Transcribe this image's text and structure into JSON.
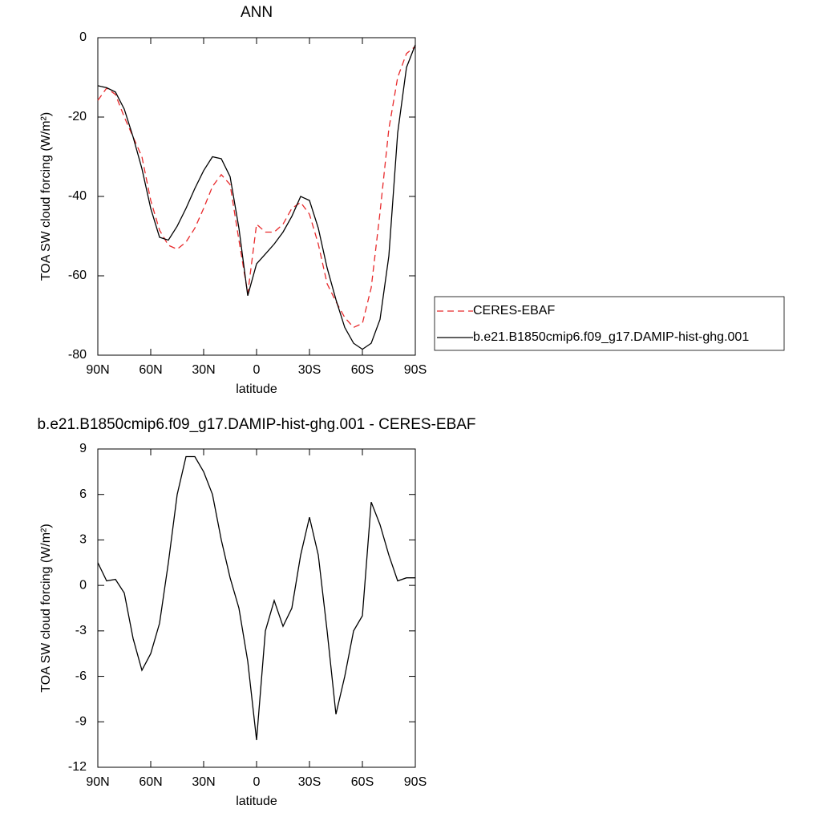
{
  "chart_data": [
    {
      "type": "line",
      "title": "ANN",
      "x_label": "latitude",
      "y_label": "TOA SW cloud forcing (W/m²)",
      "x": [
        90,
        85,
        80,
        75,
        70,
        65,
        60,
        55,
        50,
        45,
        40,
        35,
        30,
        25,
        20,
        15,
        10,
        5,
        0,
        -5,
        -10,
        -15,
        -20,
        -25,
        -30,
        -35,
        -40,
        -45,
        -50,
        -55,
        -60,
        -65,
        -70,
        -75,
        -80,
        -85,
        -90
      ],
      "xlim": [
        90,
        -90
      ],
      "xticks": [
        {
          "value": 90,
          "label": "90N"
        },
        {
          "value": 60,
          "label": "60N"
        },
        {
          "value": 30,
          "label": "30N"
        },
        0,
        {
          "value": -30,
          "label": "30S"
        },
        {
          "value": -60,
          "label": "60S"
        },
        {
          "value": -90,
          "label": "90S"
        }
      ],
      "ylim": [
        -80,
        0
      ],
      "yticks": [
        0,
        -20,
        -40,
        -60,
        -80
      ],
      "legend": "right",
      "series": [
        {
          "name": "CERES-EBAF",
          "color": "#e8292b",
          "linestyle": "dashed",
          "values": [
            -15.8,
            -12.7,
            -14.3,
            -20,
            -25,
            -30,
            -41,
            -48.5,
            -52.3,
            -53.3,
            -51.5,
            -48,
            -43,
            -37.5,
            -34.5,
            -37,
            -51,
            -64.5,
            -47,
            -49,
            -49,
            -47,
            -43,
            -41.5,
            -44.5,
            -52,
            -62,
            -66.5,
            -70.5,
            -73,
            -72,
            -63,
            -44,
            -23,
            -10,
            -4,
            -2.2
          ]
        },
        {
          "name": "b.e21.B1850cmip6.f09_g17.DAMIP-hist-ghg.001",
          "color": "#000000",
          "linestyle": "solid",
          "values": [
            -12.1,
            -12.6,
            -13.7,
            -18,
            -25,
            -33,
            -43,
            -50.3,
            -51,
            -47.5,
            -43,
            -38,
            -33.5,
            -30,
            -30.5,
            -35,
            -48,
            -65,
            -57,
            -54.5,
            -52,
            -49,
            -45,
            -40,
            -41,
            -48,
            -58,
            -66,
            -73,
            -77,
            -78.5,
            -77,
            -71,
            -55,
            -24,
            -7.5,
            -1.8
          ]
        }
      ]
    },
    {
      "type": "line",
      "title": "b.e21.B1850cmip6.f09_g17.DAMIP-hist-ghg.001 - CERES-EBAF",
      "x_label": "latitude",
      "y_label": "TOA SW cloud forcing (W/m²)",
      "x": [
        90,
        85,
        80,
        75,
        70,
        65,
        60,
        55,
        50,
        45,
        40,
        35,
        30,
        25,
        20,
        15,
        10,
        5,
        0,
        -5,
        -10,
        -15,
        -20,
        -25,
        -30,
        -35,
        -40,
        -45,
        -50,
        -55,
        -60,
        -65,
        -70,
        -75,
        -80,
        -85,
        -90
      ],
      "xlim": [
        90,
        -90
      ],
      "xticks": [
        {
          "value": 90,
          "label": "90N"
        },
        {
          "value": 60,
          "label": "60N"
        },
        {
          "value": 30,
          "label": "30N"
        },
        0,
        {
          "value": -30,
          "label": "30S"
        },
        {
          "value": -60,
          "label": "60S"
        },
        {
          "value": -90,
          "label": "90S"
        }
      ],
      "ylim": [
        -12,
        9
      ],
      "yticks": [
        9,
        6,
        3,
        0,
        -3,
        -6,
        -9,
        -12
      ],
      "series": [
        {
          "color": "#000000",
          "linestyle": "solid",
          "values": [
            1.5,
            0.3,
            0.4,
            -0.5,
            -3.5,
            -5.6,
            -4.5,
            -2.5,
            1.5,
            6,
            8.5,
            8.5,
            7.5,
            6,
            3,
            0.5,
            -1.5,
            -5,
            -10.2,
            -3,
            -1,
            -2.7,
            -1.5,
            2,
            4.5,
            2,
            -3,
            -8.5,
            -6,
            -3,
            -2,
            5.5,
            4,
            2,
            0.3,
            0.5,
            0.5
          ]
        }
      ]
    }
  ]
}
